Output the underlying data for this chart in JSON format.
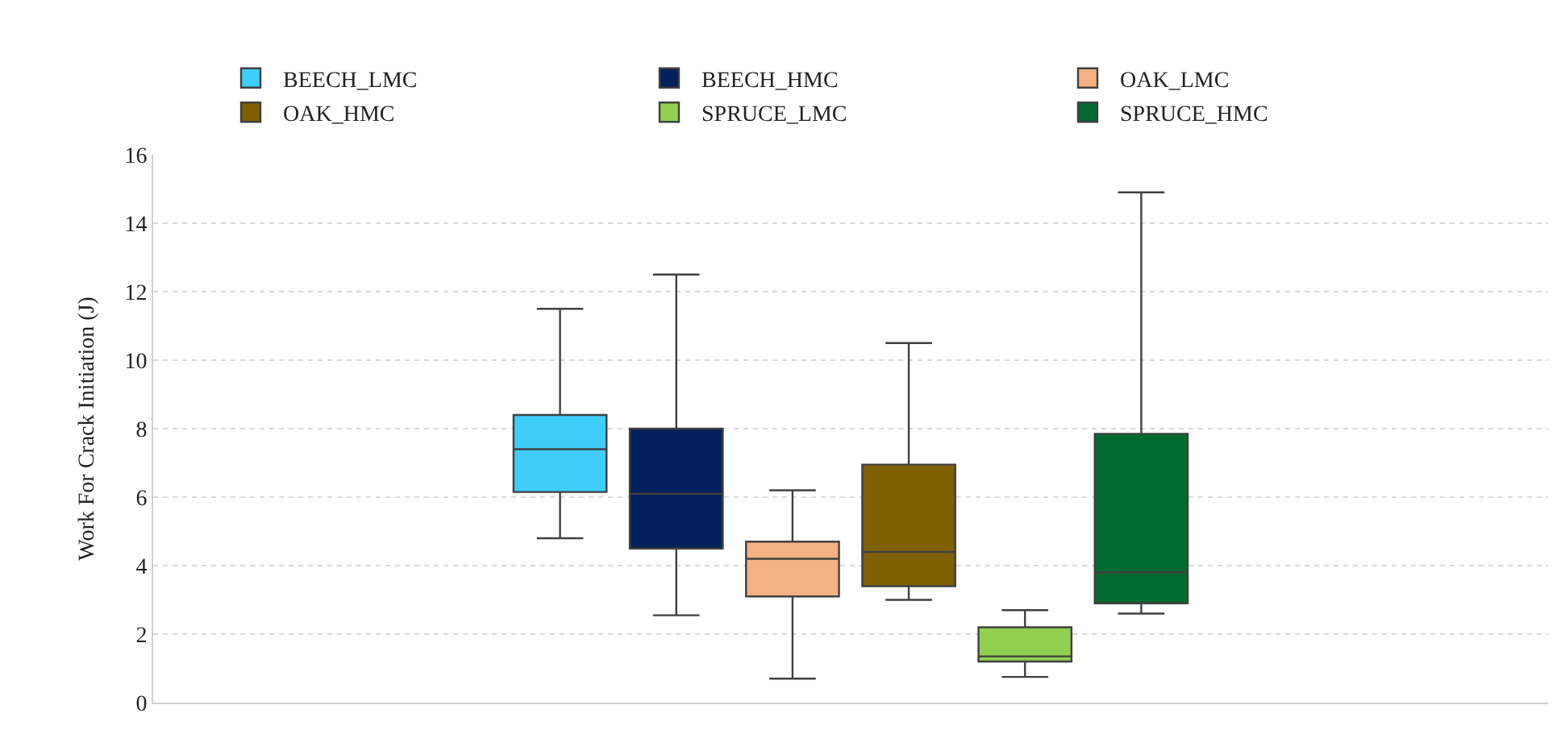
{
  "chart_data": {
    "type": "box",
    "ylabel": "Work For Crack Initiation (J)",
    "categories": [
      null
    ],
    "ylim": [
      0,
      16
    ],
    "yticks": [
      0,
      2,
      4,
      6,
      8,
      10,
      12,
      14,
      16
    ],
    "grid": "y",
    "legend": "top",
    "tick_labels": "y",
    "series": [
      {
        "name": "BEECH_LMC",
        "color": "#3fcdf9",
        "boxes": [
          {
            "low": 4.8,
            "q1": 6.15,
            "median": 7.4,
            "q3": 8.4,
            "high": 11.5
          }
        ]
      },
      {
        "name": "BEECH_HMC",
        "color": "#03215c",
        "boxes": [
          {
            "low": 2.55,
            "q1": 4.5,
            "median": 6.1,
            "q3": 8.0,
            "high": 12.5
          }
        ]
      },
      {
        "name": "OAK_LMC",
        "color": "#f4b183",
        "boxes": [
          {
            "low": 0.7,
            "q1": 3.1,
            "median": 4.2,
            "q3": 4.7,
            "high": 6.2
          }
        ]
      },
      {
        "name": "OAK_HMC",
        "color": "#7f6000",
        "boxes": [
          {
            "low": 3.0,
            "q1": 3.4,
            "median": 4.4,
            "q3": 6.95,
            "high": 10.5
          }
        ]
      },
      {
        "name": "SPRUCE_LMC",
        "color": "#92d050",
        "boxes": [
          {
            "low": 0.75,
            "q1": 1.2,
            "median": 1.35,
            "q3": 2.2,
            "high": 2.7
          }
        ]
      },
      {
        "name": "SPRUCE_HMC",
        "color": "#006a30",
        "boxes": [
          {
            "low": 2.6,
            "q1": 2.9,
            "median": 3.8,
            "q3": 7.85,
            "high": 14.9
          }
        ]
      }
    ]
  }
}
